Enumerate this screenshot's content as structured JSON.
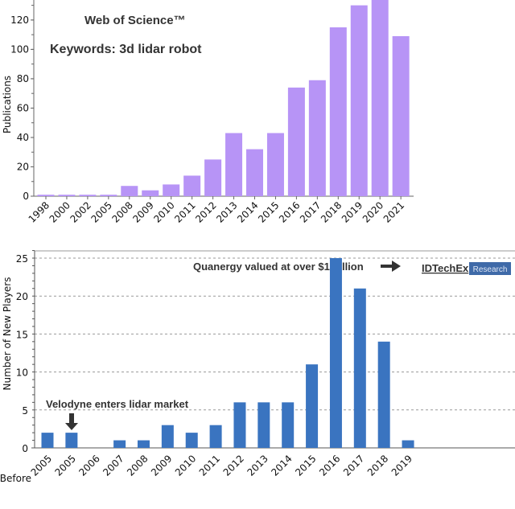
{
  "chart_data": [
    {
      "type": "bar",
      "title": "Web of Science™",
      "annotation": "Keywords: 3d lidar robot",
      "xlabel": "",
      "ylabel": "Publications",
      "categories": [
        "1998",
        "2000",
        "2002",
        "2005",
        "2008",
        "2009",
        "2010",
        "2011",
        "2012",
        "2013",
        "2014",
        "2015",
        "2016",
        "2017",
        "2018",
        "2019",
        "2020",
        "2021"
      ],
      "values": [
        1,
        1,
        1,
        1,
        7,
        4,
        8,
        14,
        25,
        43,
        32,
        43,
        74,
        79,
        115,
        130,
        136,
        109
      ],
      "yticks": [
        0,
        20,
        40,
        60,
        80,
        100,
        120
      ],
      "ylim": [
        0,
        133
      ],
      "grid": false,
      "color": "#b794f6"
    },
    {
      "type": "bar",
      "xlabel": "",
      "ylabel": "Number of New Players",
      "categories": [
        "Before 2005",
        "2005",
        "2006",
        "2007",
        "2008",
        "2009",
        "2010",
        "2011",
        "2012",
        "2013",
        "2014",
        "2015",
        "2016",
        "2017",
        "2018",
        "2019"
      ],
      "values": [
        2,
        2,
        0,
        1,
        1,
        3,
        2,
        3,
        6,
        6,
        6,
        11,
        25,
        21,
        14,
        1
      ],
      "yticks": [
        0,
        5,
        10,
        15,
        20,
        25
      ],
      "ylim": [
        0,
        26
      ],
      "grid": true,
      "color": "#3a74c0",
      "annotations": {
        "velodyne": "Velodyne enters lidar market",
        "quanergy": "Quanergy valued at over $1 billion"
      },
      "brand": {
        "name": "IDTechEx",
        "tag": "Research"
      }
    }
  ]
}
